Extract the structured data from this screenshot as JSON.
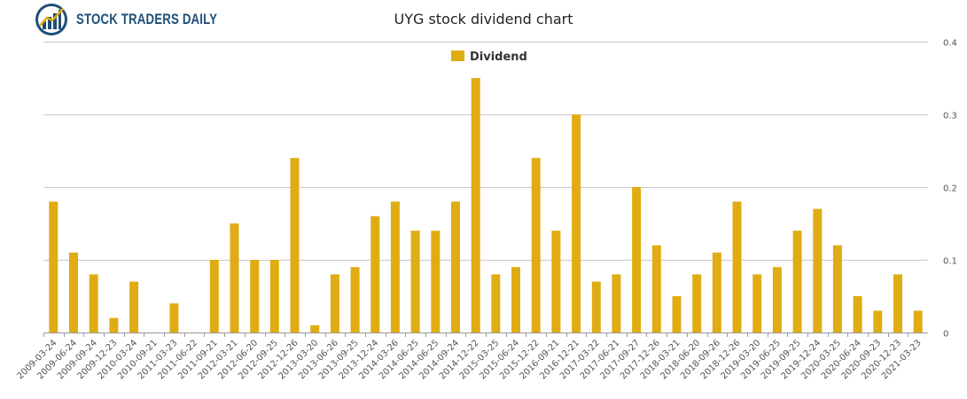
{
  "logo": {
    "text": "STOCK TRADERS DAILY",
    "icon": "bar-chart-globe-icon",
    "text_color": "#1f4e79"
  },
  "chart_data": {
    "type": "bar",
    "title": "UYG stock dividend chart",
    "xlabel": "",
    "ylabel": "",
    "ylim": [
      0,
      0.4
    ],
    "yticks": [
      0,
      0.1,
      0.2,
      0.3,
      0.4
    ],
    "ytick_labels": [
      "0",
      "0.1",
      "0.2",
      "0.3",
      "0.4"
    ],
    "grid": true,
    "legend_position": "top-center",
    "y_axis_side": "right",
    "bar_color": "#e0ac14",
    "series": [
      {
        "name": "Dividend",
        "values": [
          0.18,
          0.11,
          0.08,
          0.02,
          0.07,
          0,
          0.04,
          0,
          0.1,
          0.15,
          0.1,
          0.1,
          0.24,
          0.01,
          0.08,
          0.09,
          0.16,
          0.18,
          0.14,
          0.14,
          0.18,
          0.35,
          0.08,
          0.09,
          0.24,
          0.14,
          0.3,
          0.07,
          0.08,
          0.2,
          0.12,
          0.05,
          0.08,
          0.11,
          0.18,
          0.08,
          0.09,
          0.14,
          0.17,
          0.12,
          0.05,
          0.03,
          0.08,
          0.03
        ]
      }
    ],
    "categories": [
      "2009-03-24",
      "2009-06-24",
      "2009-09-24",
      "2009-12-23",
      "2010-03-24",
      "2010-09-21",
      "2011-03-23",
      "2011-06-22",
      "2011-09-21",
      "2012-03-21",
      "2012-06-20",
      "2012-09-25",
      "2012-12-26",
      "2013-03-20",
      "2013-06-26",
      "2013-09-25",
      "2013-12-24",
      "2014-03-26",
      "2014-06-25",
      "2014-06-25",
      "2014-09-24",
      "2014-12-22",
      "2015-03-25",
      "2015-06-24",
      "2015-12-22",
      "2016-09-21",
      "2016-12-21",
      "2017-03-22",
      "2017-06-21",
      "2017-09-27",
      "2017-12-26",
      "2018-03-21",
      "2018-06-20",
      "2018-09-26",
      "2018-12-26",
      "2019-03-20",
      "2019-06-25",
      "2019-09-25",
      "2019-12-24",
      "2020-03-25",
      "2020-06-24",
      "2020-09-23",
      "2020-12-23",
      "2021-03-23"
    ]
  }
}
